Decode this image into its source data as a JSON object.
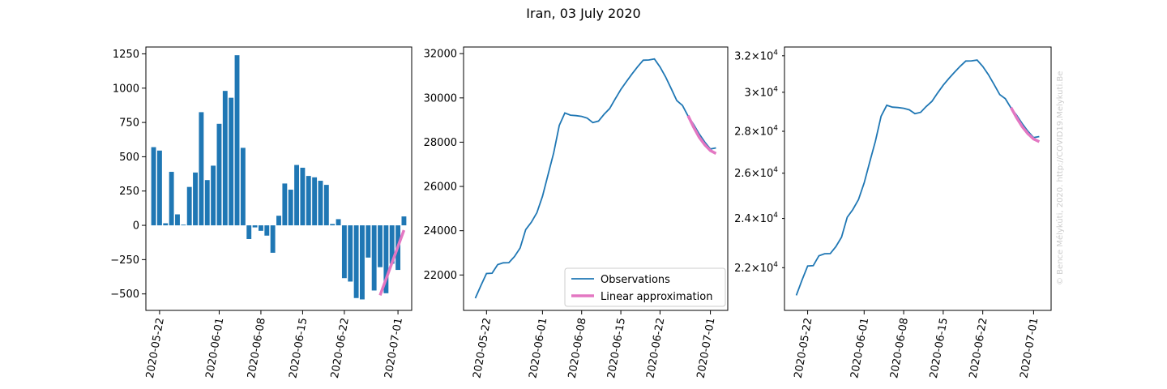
{
  "figure": {
    "title": "Iran, 03 July 2020",
    "credit": "© Bence Mélykúti, 2020. http://COVID19.Melykuti.Be"
  },
  "colors": {
    "observations": "#1f77b4",
    "approximation": "#e377c2"
  },
  "chart_data": [
    {
      "type": "bar",
      "title": "",
      "xlabel": "",
      "ylabel": "",
      "x_tick_labels": [
        "2020-05-22",
        "2020-06-01",
        "2020-06-08",
        "2020-06-15",
        "2020-06-22",
        "2020-07-01"
      ],
      "y_tick_labels": [
        "−500",
        "−250",
        "0",
        "250",
        "500",
        "750",
        "1000",
        "1250"
      ],
      "ylim": [
        -620,
        1300
      ],
      "x": [
        "2020-05-21",
        "2020-05-22",
        "2020-05-23",
        "2020-05-24",
        "2020-05-25",
        "2020-05-26",
        "2020-05-27",
        "2020-05-28",
        "2020-05-29",
        "2020-05-30",
        "2020-05-31",
        "2020-06-01",
        "2020-06-02",
        "2020-06-03",
        "2020-06-04",
        "2020-06-05",
        "2020-06-06",
        "2020-06-07",
        "2020-06-08",
        "2020-06-09",
        "2020-06-10",
        "2020-06-11",
        "2020-06-12",
        "2020-06-13",
        "2020-06-14",
        "2020-06-15",
        "2020-06-16",
        "2020-06-17",
        "2020-06-18",
        "2020-06-19",
        "2020-06-20",
        "2020-06-21",
        "2020-06-22",
        "2020-06-23",
        "2020-06-24",
        "2020-06-25",
        "2020-06-26",
        "2020-06-27",
        "2020-06-28",
        "2020-06-29",
        "2020-06-30",
        "2020-07-01",
        "2020-07-02"
      ],
      "values": [
        570,
        545,
        15,
        390,
        80,
        5,
        280,
        385,
        825,
        330,
        435,
        740,
        980,
        930,
        1240,
        565,
        -100,
        -15,
        -40,
        -75,
        -200,
        70,
        305,
        260,
        440,
        420,
        360,
        350,
        325,
        295,
        10,
        45,
        -385,
        -410,
        -530,
        -540,
        -235,
        -475,
        -305,
        -495,
        -280,
        -325,
        65
      ],
      "series": [
        {
          "name": "",
          "x": [
            "2020-06-28",
            "2020-07-02"
          ],
          "values": [
            -510,
            -35
          ]
        }
      ]
    },
    {
      "type": "line",
      "title": "",
      "xlabel": "",
      "ylabel": "",
      "x_tick_labels": [
        "2020-05-22",
        "2020-06-01",
        "2020-06-08",
        "2020-06-15",
        "2020-06-22",
        "2020-07-01"
      ],
      "y_tick_labels": [
        "22000",
        "24000",
        "26000",
        "28000",
        "30000",
        "32000"
      ],
      "ylim": [
        20400,
        32300
      ],
      "legend": "lower-right",
      "x": [
        "2020-05-20",
        "2020-05-21",
        "2020-05-22",
        "2020-05-23",
        "2020-05-24",
        "2020-05-25",
        "2020-05-26",
        "2020-05-27",
        "2020-05-28",
        "2020-05-29",
        "2020-05-30",
        "2020-05-31",
        "2020-06-01",
        "2020-06-02",
        "2020-06-03",
        "2020-06-04",
        "2020-06-05",
        "2020-06-06",
        "2020-06-07",
        "2020-06-08",
        "2020-06-09",
        "2020-06-10",
        "2020-06-11",
        "2020-06-12",
        "2020-06-13",
        "2020-06-14",
        "2020-06-15",
        "2020-06-16",
        "2020-06-17",
        "2020-06-18",
        "2020-06-19",
        "2020-06-20",
        "2020-06-21",
        "2020-06-22",
        "2020-06-23",
        "2020-06-24",
        "2020-06-25",
        "2020-06-26",
        "2020-06-27",
        "2020-06-28",
        "2020-06-29",
        "2020-06-30",
        "2020-07-01",
        "2020-07-02"
      ],
      "series": [
        {
          "name": "Observations",
          "values": [
            20950,
            21520,
            22065,
            22080,
            22470,
            22550,
            22555,
            22835,
            23220,
            24050,
            24380,
            24815,
            25555,
            26535,
            27515,
            28755,
            29320,
            29220,
            29200,
            29165,
            29085,
            28885,
            28955,
            29260,
            29520,
            29960,
            30380,
            30740,
            31085,
            31410,
            31705,
            31715,
            31760,
            31400,
            30950,
            30420,
            29880,
            29660,
            29180,
            28800,
            28370,
            28000,
            27690,
            27740
          ]
        },
        {
          "name": "Linear approximation",
          "x": [
            "2020-06-27",
            "2020-06-28",
            "2020-06-29",
            "2020-06-30",
            "2020-07-01",
            "2020-07-02"
          ],
          "values": [
            29200,
            28680,
            28220,
            27880,
            27620,
            27490
          ]
        }
      ]
    },
    {
      "type": "line",
      "title": "",
      "xlabel": "",
      "ylabel": "",
      "yscale": "log",
      "x_tick_labels": [
        "2020-05-22",
        "2020-06-01",
        "2020-06-08",
        "2020-06-15",
        "2020-06-22",
        "2020-07-01"
      ],
      "y_ticks": [
        {
          "value": 22000,
          "mant": "2.2",
          "exp": "4"
        },
        {
          "value": 24000,
          "mant": "2.4",
          "exp": "4"
        },
        {
          "value": 26000,
          "mant": "2.6",
          "exp": "4"
        },
        {
          "value": 28000,
          "mant": "2.8",
          "exp": "4"
        },
        {
          "value": 30000,
          "mant": "3",
          "exp": "4"
        },
        {
          "value": 32000,
          "mant": "3.2",
          "exp": "4"
        }
      ],
      "ylim": [
        20400,
        32500
      ],
      "series": [
        {
          "name": "Observations",
          "ref": 1
        },
        {
          "name": "Linear approximation",
          "ref": 1
        }
      ]
    }
  ]
}
